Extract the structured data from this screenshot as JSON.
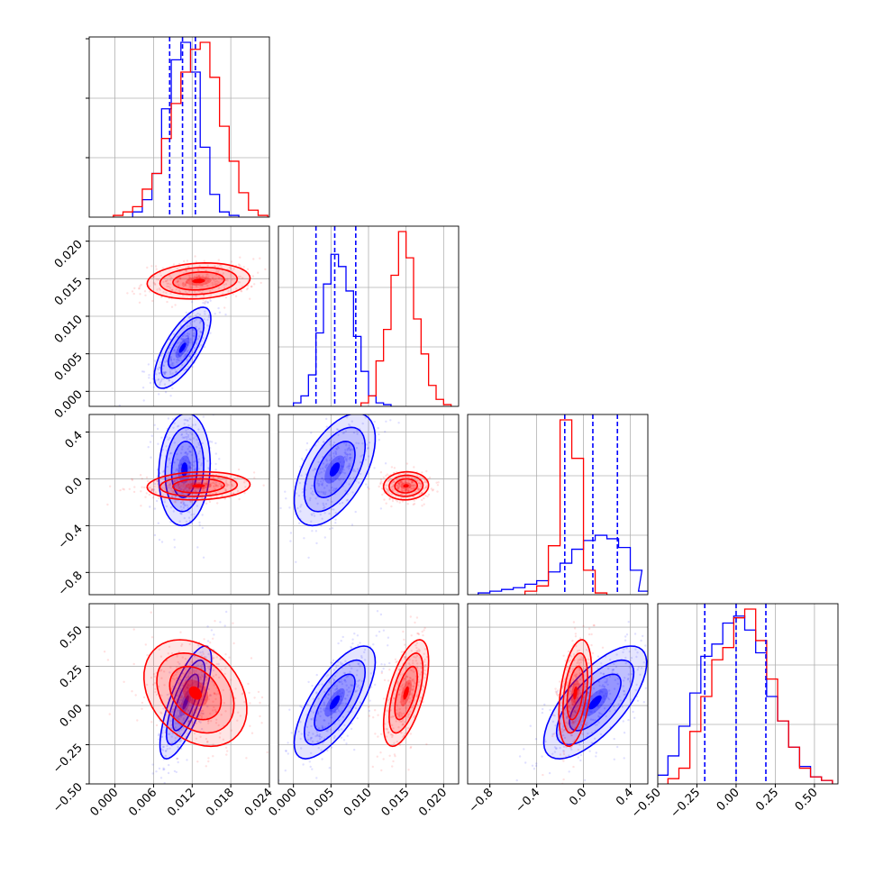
{
  "chart_data": {
    "type": "corner",
    "title": "",
    "grid": true,
    "series": [
      {
        "color": "#0000ff"
      },
      {
        "color": "#ff0000"
      }
    ],
    "parameters": [
      {
        "range": [
          -0.004,
          0.024
        ],
        "ticks": [
          0.0,
          0.006,
          0.012,
          0.018,
          0.024
        ],
        "tick_labels": [
          "0.000",
          "0.006",
          "0.012",
          "0.018",
          "0.024"
        ]
      },
      {
        "range": [
          -0.002,
          0.022
        ],
        "ticks": [
          0.0,
          0.005,
          0.01,
          0.015,
          0.02
        ],
        "tick_labels": [
          "0.000",
          "0.005",
          "0.010",
          "0.015",
          "0.020"
        ]
      },
      {
        "range": [
          -0.99,
          0.55
        ],
        "ticks": [
          -0.8,
          -0.4,
          0.0,
          0.4
        ],
        "tick_labels": [
          "−0.8",
          "−0.4",
          "0.0",
          "0.4"
        ]
      },
      {
        "range": [
          -0.5,
          0.65
        ],
        "ticks": [
          -0.5,
          -0.25,
          0.0,
          0.25,
          0.5
        ],
        "tick_labels": [
          "−0.50",
          "−0.25",
          "0.00",
          "0.25",
          "0.50"
        ]
      }
    ],
    "histograms": [
      {
        "param": 0,
        "blue": {
          "centers": [
            0.0035,
            0.005,
            0.0065,
            0.008,
            0.0095,
            0.011,
            0.0125,
            0.014,
            0.0155,
            0.017,
            0.0185
          ],
          "heights": [
            0.03,
            0.1,
            0.25,
            0.62,
            0.9,
            1.0,
            0.83,
            0.4,
            0.13,
            0.03,
            0.01
          ]
        },
        "red": {
          "centers": [
            0.0005,
            0.002,
            0.0035,
            0.005,
            0.0065,
            0.008,
            0.0095,
            0.011,
            0.0125,
            0.014,
            0.0155,
            0.017,
            0.0185,
            0.02,
            0.0215,
            0.023
          ],
          "heights": [
            0.01,
            0.03,
            0.06,
            0.16,
            0.25,
            0.45,
            0.65,
            0.83,
            0.96,
            1.0,
            0.8,
            0.52,
            0.32,
            0.14,
            0.04,
            0.01
          ]
        },
        "quantiles": [
          0.0085,
          0.0105,
          0.0125
        ]
      },
      {
        "param": 1,
        "blue": {
          "centers": [
            0.0005,
            0.0015,
            0.0025,
            0.0035,
            0.0045,
            0.0055,
            0.0065,
            0.0075,
            0.0085,
            0.0095,
            0.0105,
            0.0115,
            0.0125
          ],
          "heights": [
            0.02,
            0.06,
            0.18,
            0.42,
            0.7,
            0.87,
            0.8,
            0.66,
            0.4,
            0.2,
            0.06,
            0.02,
            0.01
          ]
        },
        "red": {
          "centers": [
            0.0095,
            0.0105,
            0.0115,
            0.0125,
            0.0135,
            0.0145,
            0.0155,
            0.0165,
            0.0175,
            0.0185,
            0.0195,
            0.0205
          ],
          "heights": [
            0.02,
            0.06,
            0.26,
            0.44,
            0.75,
            1.0,
            0.85,
            0.5,
            0.3,
            0.12,
            0.04,
            0.01
          ]
        },
        "quantiles": [
          0.003,
          0.0055,
          0.0083
        ]
      },
      {
        "param": 2,
        "blue": {
          "centers": [
            -0.85,
            -0.75,
            -0.65,
            -0.55,
            -0.45,
            -0.35,
            -0.25,
            -0.15,
            -0.05,
            0.05,
            0.15,
            0.25,
            0.35,
            0.45,
            0.52
          ],
          "heights": [
            0.01,
            0.02,
            0.03,
            0.04,
            0.06,
            0.08,
            0.13,
            0.18,
            0.26,
            0.31,
            0.34,
            0.32,
            0.27,
            0.14,
            0.02
          ]
        },
        "red": {
          "centers": [
            -0.45,
            -0.35,
            -0.25,
            -0.15,
            -0.05,
            0.05,
            0.15
          ],
          "heights": [
            0.02,
            0.05,
            0.28,
            1.0,
            0.78,
            0.14,
            0.01
          ]
        },
        "quantiles": [
          -0.16,
          0.08,
          0.29
        ]
      },
      {
        "param": 3,
        "blue": {
          "centers": [
            -0.47,
            -0.4,
            -0.33,
            -0.26,
            -0.19,
            -0.12,
            -0.05,
            0.02,
            0.09,
            0.16,
            0.23,
            0.3,
            0.37,
            0.44,
            0.51,
            0.58
          ],
          "heights": [
            0.05,
            0.16,
            0.33,
            0.52,
            0.73,
            0.8,
            0.92,
            0.96,
            0.88,
            0.75,
            0.5,
            0.36,
            0.21,
            0.1,
            0.04,
            0.02
          ]
        },
        "red": {
          "centers": [
            -0.4,
            -0.33,
            -0.26,
            -0.19,
            -0.12,
            -0.05,
            0.02,
            0.09,
            0.16,
            0.23,
            0.3,
            0.37,
            0.44,
            0.51,
            0.58
          ],
          "heights": [
            0.03,
            0.09,
            0.3,
            0.5,
            0.71,
            0.78,
            0.95,
            1.0,
            0.82,
            0.6,
            0.36,
            0.21,
            0.09,
            0.04,
            0.02
          ]
        },
        "quantiles": [
          -0.2,
          0.0,
          0.19
        ]
      }
    ],
    "scatter_panels": [
      {
        "x_param": 0,
        "y_param": 1,
        "blue": {
          "mean": [
            0.0105,
            0.0058
          ],
          "sd": [
            0.0022,
            0.0027
          ],
          "corr": 0.72
        },
        "red": {
          "mean": [
            0.013,
            0.0147
          ],
          "sd": [
            0.004,
            0.0012
          ],
          "corr": 0.15
        }
      },
      {
        "x_param": 0,
        "y_param": 2,
        "blue": {
          "mean": [
            0.0108,
            0.08
          ],
          "sd": [
            0.002,
            0.24
          ],
          "corr": 0.1
        },
        "red": {
          "mean": [
            0.013,
            -0.06
          ],
          "sd": [
            0.004,
            0.06
          ],
          "corr": 0.1
        }
      },
      {
        "x_param": 1,
        "y_param": 2,
        "blue": {
          "mean": [
            0.0055,
            0.08
          ],
          "sd": [
            0.0027,
            0.24
          ],
          "corr": 0.55
        },
        "red": {
          "mean": [
            0.015,
            -0.06
          ],
          "sd": [
            0.0015,
            0.06
          ],
          "corr": 0.05
        }
      },
      {
        "x_param": 0,
        "y_param": 3,
        "blue": {
          "mean": [
            0.011,
            0.02
          ],
          "sd": [
            0.002,
            0.18
          ],
          "corr": 0.75
        },
        "red": {
          "mean": [
            0.0125,
            0.08
          ],
          "sd": [
            0.004,
            0.17
          ],
          "corr": -0.3
        }
      },
      {
        "x_param": 1,
        "y_param": 3,
        "blue": {
          "mean": [
            0.0055,
            0.02
          ],
          "sd": [
            0.0027,
            0.18
          ],
          "corr": 0.72
        },
        "red": {
          "mean": [
            0.015,
            0.08
          ],
          "sd": [
            0.0015,
            0.17
          ],
          "corr": 0.6
        }
      },
      {
        "x_param": 2,
        "y_param": 3,
        "blue": {
          "mean": [
            0.1,
            0.02
          ],
          "sd": [
            0.22,
            0.18
          ],
          "corr": 0.7
        },
        "red": {
          "mean": [
            -0.07,
            0.08
          ],
          "sd": [
            0.07,
            0.17
          ],
          "corr": 0.4
        }
      }
    ]
  }
}
